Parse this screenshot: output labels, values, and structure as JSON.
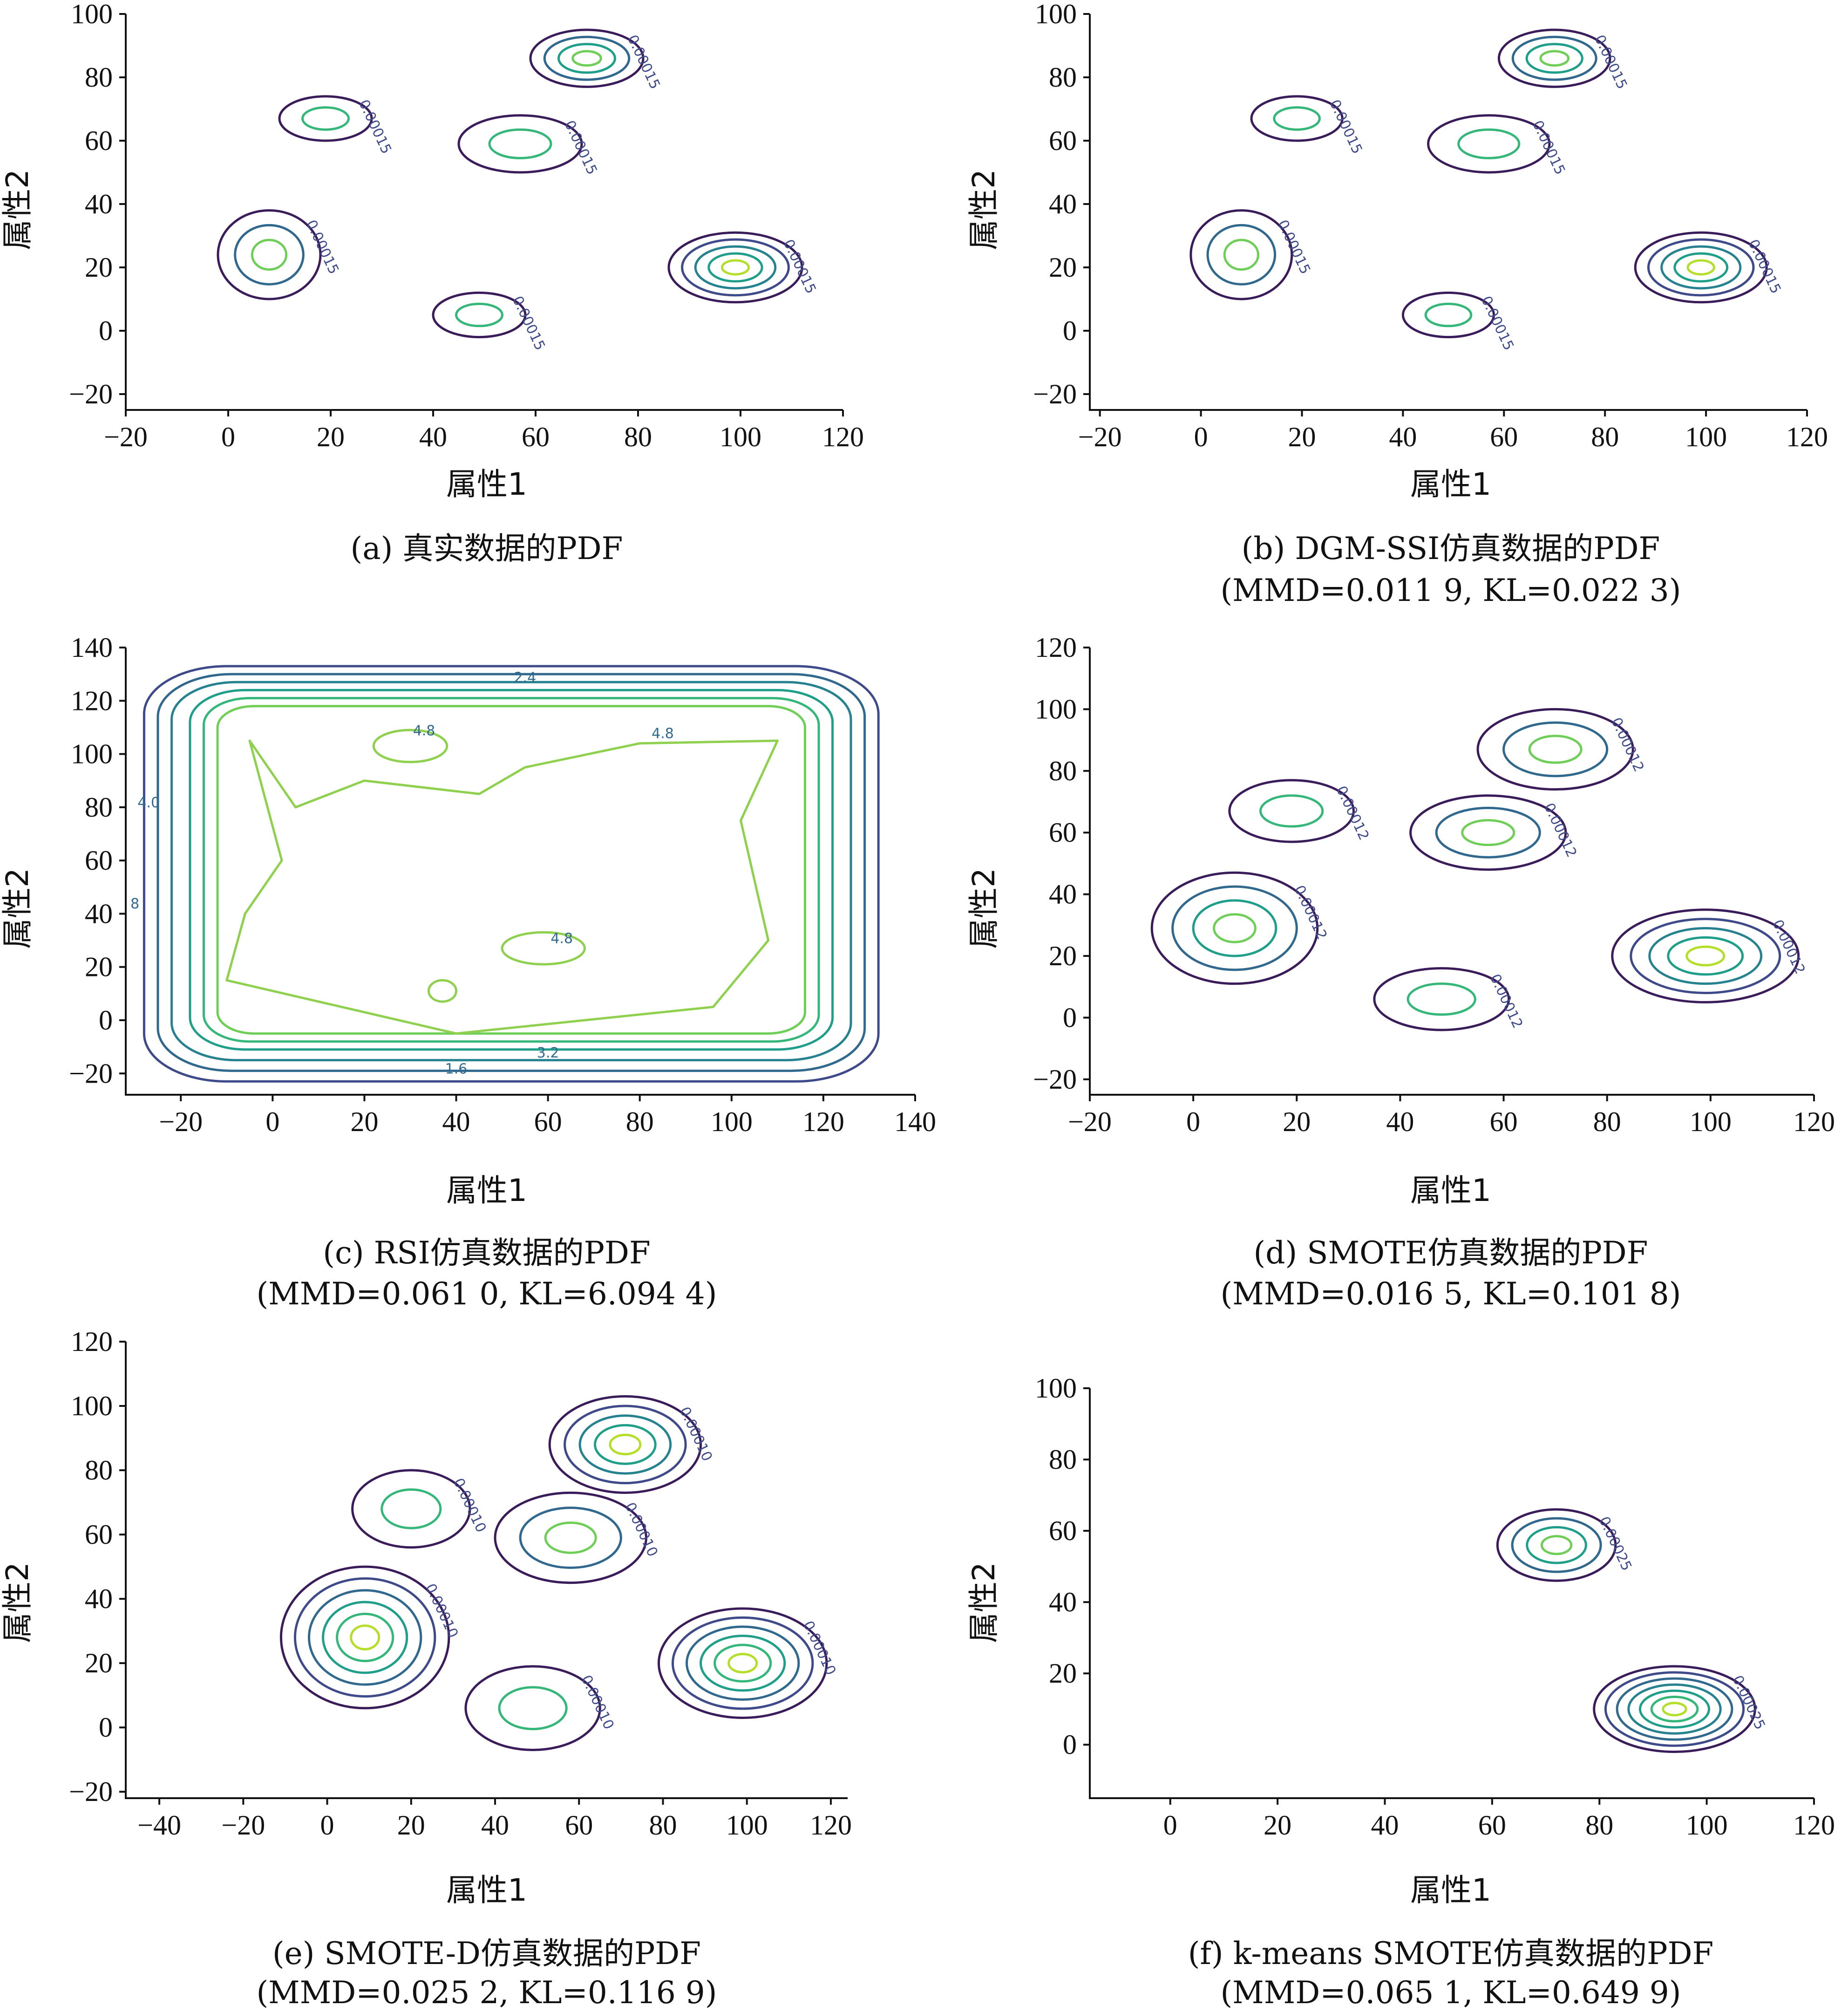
{
  "chart_data": [
    {
      "id": "a",
      "type": "contour",
      "xlabel": "属性1",
      "ylabel": "属性2",
      "caption": "(a) 真实数据的PDF",
      "metrics": "",
      "xlim": [
        -20,
        120
      ],
      "ylim": [
        -25,
        100
      ],
      "xticks": [
        -20,
        0,
        20,
        40,
        60,
        80,
        100,
        120
      ],
      "yticks": [
        -20,
        0,
        20,
        40,
        60,
        80,
        100
      ],
      "clusters": [
        {
          "cx": 19,
          "cy": 67,
          "rx": 9,
          "ry": 7,
          "levels": 2,
          "label": "0.00015"
        },
        {
          "cx": 70,
          "cy": 86,
          "rx": 11,
          "ry": 9,
          "levels": 4,
          "label": "0.00015"
        },
        {
          "cx": 57,
          "cy": 59,
          "rx": 12,
          "ry": 9,
          "levels": 2,
          "label": "0.00015"
        },
        {
          "cx": 8,
          "cy": 24,
          "rx": 10,
          "ry": 14,
          "levels": 3,
          "label": "0.00015"
        },
        {
          "cx": 99,
          "cy": 20,
          "rx": 13,
          "ry": 11,
          "levels": 5,
          "label": "0.00015"
        },
        {
          "cx": 49,
          "cy": 5,
          "rx": 9,
          "ry": 7,
          "levels": 2,
          "label": "0.00015"
        }
      ]
    },
    {
      "id": "b",
      "type": "contour",
      "xlabel": "属性1",
      "ylabel": "属性2",
      "caption": "(b) DGM-SSI仿真数据的PDF",
      "metrics": "(MMD=0.011 9, KL=0.022 3)",
      "xlim": [
        -22,
        120
      ],
      "ylim": [
        -25,
        100
      ],
      "xticks": [
        -20,
        0,
        20,
        40,
        60,
        80,
        100,
        120
      ],
      "yticks": [
        -20,
        0,
        20,
        40,
        60,
        80,
        100
      ],
      "clusters": [
        {
          "cx": 19,
          "cy": 67,
          "rx": 9,
          "ry": 7,
          "levels": 2,
          "label": "0.00015"
        },
        {
          "cx": 70,
          "cy": 86,
          "rx": 11,
          "ry": 9,
          "levels": 4,
          "label": "0.00015"
        },
        {
          "cx": 57,
          "cy": 59,
          "rx": 12,
          "ry": 9,
          "levels": 2,
          "label": "0.00015"
        },
        {
          "cx": 8,
          "cy": 24,
          "rx": 10,
          "ry": 14,
          "levels": 3,
          "label": "0.00015"
        },
        {
          "cx": 99,
          "cy": 20,
          "rx": 13,
          "ry": 11,
          "levels": 5,
          "label": "0.00015"
        },
        {
          "cx": 49,
          "cy": 5,
          "rx": 9,
          "ry": 7,
          "levels": 2,
          "label": "0.00015"
        }
      ]
    },
    {
      "id": "c",
      "type": "contour",
      "xlabel": "属性1",
      "ylabel": "属性2",
      "caption": "(c) RSI仿真数据的PDF",
      "metrics": "(MMD=0.061 0, KL=6.094 4)",
      "xlim": [
        -32,
        140
      ],
      "ylim": [
        -28,
        140
      ],
      "xticks": [
        -20,
        0,
        20,
        40,
        60,
        80,
        100,
        120,
        140
      ],
      "yticks": [
        -20,
        0,
        20,
        40,
        60,
        80,
        100,
        120,
        140
      ],
      "rect_levels": [
        {
          "x0": -28,
          "x1": 132,
          "y0": -23,
          "y1": 133,
          "r": 18
        },
        {
          "x0": -25,
          "x1": 129,
          "y0": -19,
          "y1": 130,
          "r": 16
        },
        {
          "x0": -22,
          "x1": 126,
          "y0": -15,
          "y1": 127,
          "r": 14
        },
        {
          "x0": -18,
          "x1": 122,
          "y0": -11,
          "y1": 124,
          "r": 12
        },
        {
          "x0": -15,
          "x1": 119,
          "y0": -8,
          "y1": 121,
          "r": 10
        },
        {
          "x0": -12,
          "x1": 116,
          "y0": -5,
          "y1": 118,
          "r": 8
        }
      ],
      "contour_labels": [
        "2.4",
        "4.0",
        "4.8",
        "4.8",
        "4.8",
        "3.2",
        "1.6",
        "8"
      ]
    },
    {
      "id": "d",
      "type": "contour",
      "xlabel": "属性1",
      "ylabel": "属性2",
      "caption": "(d) SMOTE仿真数据的PDF",
      "metrics": "(MMD=0.016 5, KL=0.101 8)",
      "xlim": [
        -20,
        120
      ],
      "ylim": [
        -25,
        120
      ],
      "xticks": [
        -20,
        0,
        20,
        40,
        60,
        80,
        100,
        120
      ],
      "yticks": [
        -20,
        0,
        20,
        40,
        60,
        80,
        100,
        120
      ],
      "clusters": [
        {
          "cx": 19,
          "cy": 67,
          "rx": 12,
          "ry": 10,
          "levels": 2,
          "label": "0.00012"
        },
        {
          "cx": 70,
          "cy": 87,
          "rx": 15,
          "ry": 13,
          "levels": 3,
          "label": "0.00012"
        },
        {
          "cx": 57,
          "cy": 60,
          "rx": 15,
          "ry": 12,
          "levels": 3,
          "label": "0.00012"
        },
        {
          "cx": 8,
          "cy": 29,
          "rx": 16,
          "ry": 18,
          "levels": 4,
          "label": "0.00012"
        },
        {
          "cx": 99,
          "cy": 20,
          "rx": 18,
          "ry": 15,
          "levels": 5,
          "label": "0.00012"
        },
        {
          "cx": 48,
          "cy": 6,
          "rx": 13,
          "ry": 10,
          "levels": 2,
          "label": "0.00012"
        }
      ]
    },
    {
      "id": "e",
      "type": "contour",
      "xlabel": "属性1",
      "ylabel": "属性2",
      "caption": "(e) SMOTE-D仿真数据的PDF",
      "metrics": "(MMD=0.025 2, KL=0.116 9)",
      "xlim": [
        -48,
        124
      ],
      "ylim": [
        -22,
        120
      ],
      "xticks": [
        -40,
        -20,
        0,
        20,
        40,
        60,
        80,
        100,
        120
      ],
      "yticks": [
        -20,
        0,
        20,
        40,
        60,
        80,
        100,
        120
      ],
      "clusters": [
        {
          "cx": 20,
          "cy": 68,
          "rx": 14,
          "ry": 12,
          "levels": 2,
          "label": "0.00010"
        },
        {
          "cx": 71,
          "cy": 88,
          "rx": 18,
          "ry": 15,
          "levels": 5,
          "label": "0.00010"
        },
        {
          "cx": 58,
          "cy": 59,
          "rx": 18,
          "ry": 14,
          "levels": 3,
          "label": "0.00010"
        },
        {
          "cx": 9,
          "cy": 28,
          "rx": 20,
          "ry": 22,
          "levels": 6,
          "label": "0.00010"
        },
        {
          "cx": 99,
          "cy": 20,
          "rx": 20,
          "ry": 17,
          "levels": 6,
          "label": "0.00010"
        },
        {
          "cx": 49,
          "cy": 6,
          "rx": 16,
          "ry": 13,
          "levels": 2,
          "label": "0.00010"
        }
      ]
    },
    {
      "id": "f",
      "type": "contour",
      "xlabel": "属性1",
      "ylabel": "属性2",
      "caption": "(f) k-means SMOTE仿真数据的PDF",
      "metrics": "(MMD=0.065 1, KL=0.649 9)",
      "xlim": [
        -15,
        120
      ],
      "ylim": [
        -15,
        100
      ],
      "xticks": [
        0,
        20,
        40,
        60,
        80,
        100,
        120
      ],
      "yticks": [
        0,
        20,
        40,
        60,
        80,
        100
      ],
      "clusters": [
        {
          "cx": 72,
          "cy": 56,
          "rx": 11,
          "ry": 10,
          "levels": 4,
          "label": "0.00025"
        },
        {
          "cx": 94,
          "cy": 10,
          "rx": 15,
          "ry": 12,
          "levels": 7,
          "label": "0.00025"
        }
      ]
    }
  ]
}
